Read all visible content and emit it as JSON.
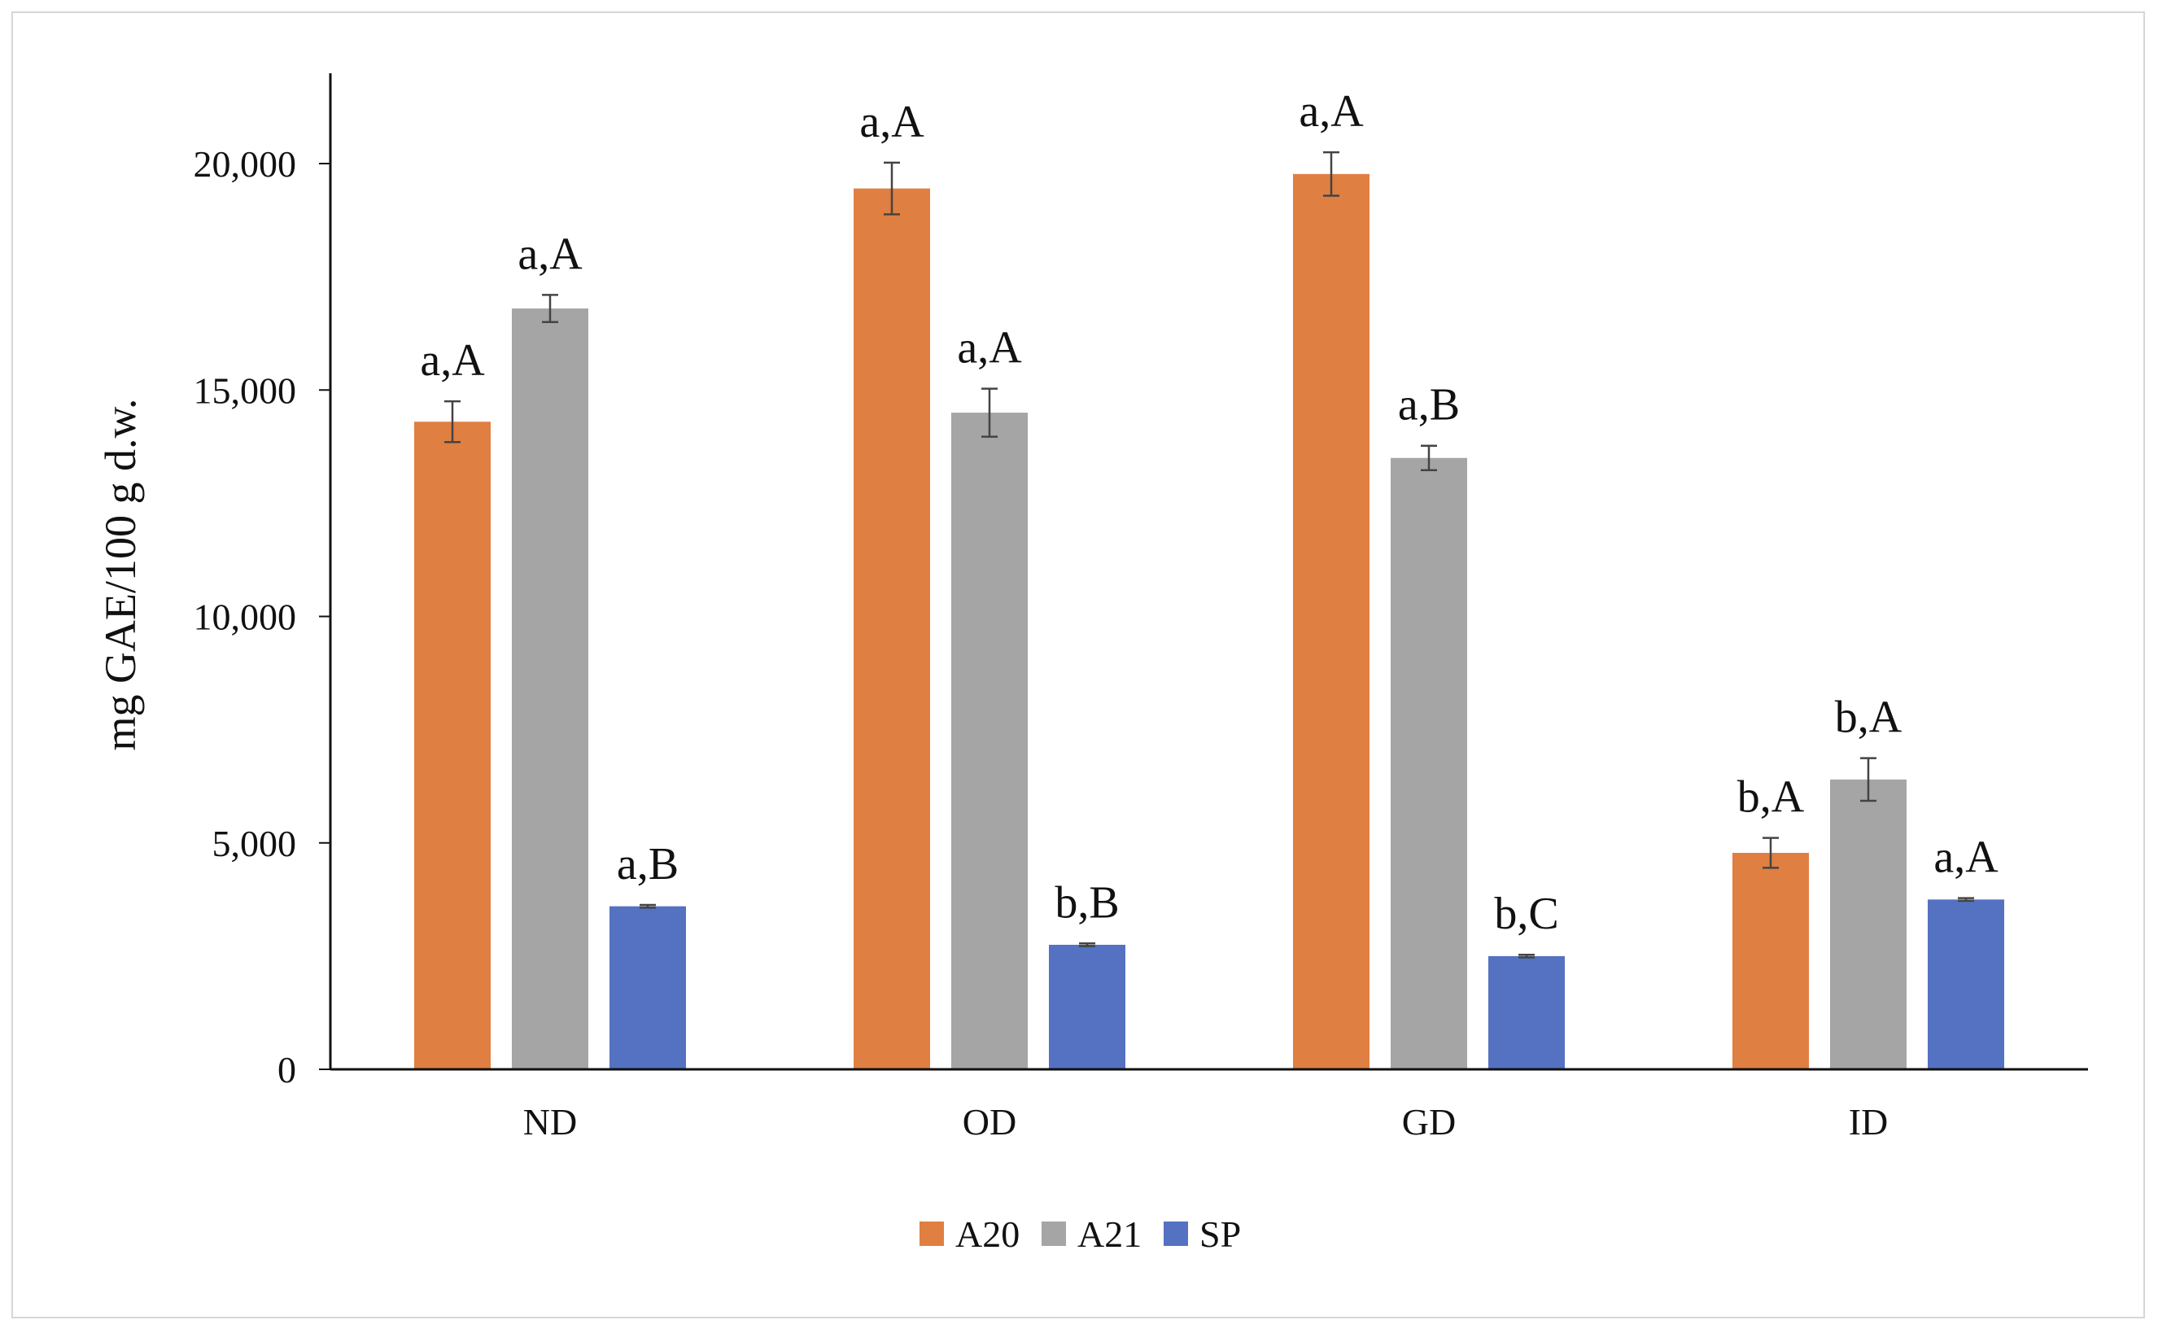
{
  "chart_data": {
    "type": "bar",
    "title": "",
    "xlabel": "",
    "ylabel": "mg GAE/100 g d.w.",
    "ylim": [
      0,
      22000
    ],
    "yticks": [
      0,
      5000,
      10000,
      15000,
      20000
    ],
    "ytick_labels": [
      "0",
      "5,000",
      "10,000",
      "15,000",
      "20,000"
    ],
    "categories": [
      "ND",
      "OD",
      "GD",
      "ID"
    ],
    "series": [
      {
        "name": "A20",
        "color": "#e07f42",
        "values": [
          14300,
          19450,
          19770,
          4780
        ],
        "errors": [
          450,
          570,
          480,
          330
        ],
        "labels": [
          "a,A",
          "a,A",
          "a,A",
          "b,A"
        ]
      },
      {
        "name": "A21",
        "color": "#a5a5a5",
        "values": [
          16800,
          14500,
          13500,
          6400
        ],
        "errors": [
          300,
          530,
          270,
          470
        ],
        "labels": [
          "a,A",
          "a,A",
          "a,B",
          "b,A"
        ]
      },
      {
        "name": "SP",
        "color": "#5472c1",
        "values": [
          3600,
          2750,
          2500,
          3750
        ],
        "errors": [
          30,
          30,
          30,
          30
        ],
        "labels": [
          "a,B",
          "b,B",
          "b,C",
          "a,A"
        ]
      }
    ],
    "grid": false,
    "legend": "bottom-center"
  }
}
